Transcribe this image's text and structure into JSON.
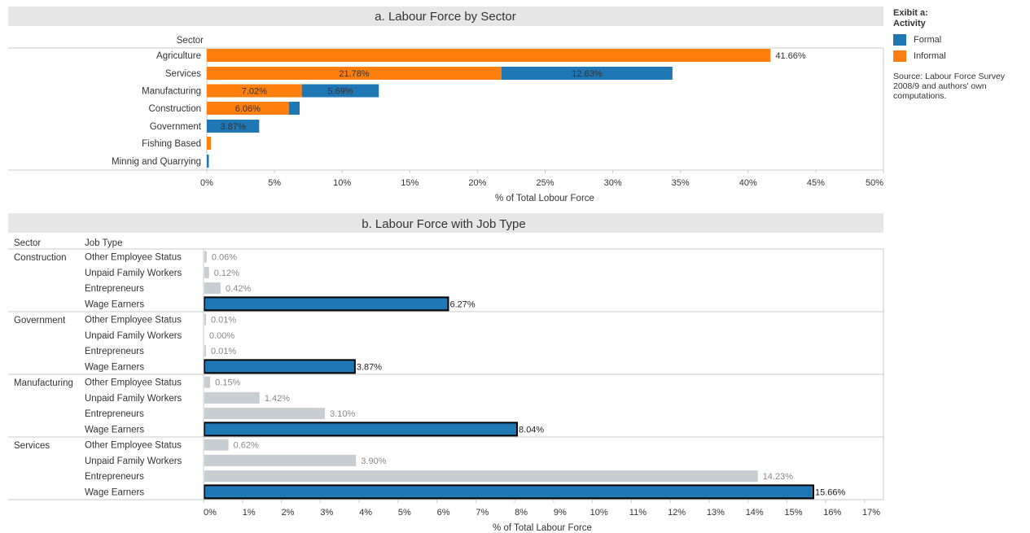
{
  "legend": {
    "title_line1": "Exibit a:",
    "title_line2": "Activity",
    "items": [
      {
        "label": "Formal",
        "color": "#1f77b4"
      },
      {
        "label": "Informal",
        "color": "#ff7f0e"
      }
    ],
    "source": "Source: Labour Force Survey 2008/9 and authors' own computations."
  },
  "chart_data": [
    {
      "type": "bar",
      "orientation": "horizontal",
      "stacked": true,
      "title": "a. Labour Force by Sector",
      "row_header": "Sector",
      "xlabel": "% of Total Lobour Force",
      "xlim": [
        0,
        50
      ],
      "xticks": [
        "0%",
        "5%",
        "10%",
        "15%",
        "20%",
        "25%",
        "30%",
        "35%",
        "40%",
        "45%",
        "50%"
      ],
      "categories": [
        "Agriculture",
        "Services",
        "Manufacturing",
        "Construction",
        "Government",
        "Fishing Based",
        "Minnig and Quarrying"
      ],
      "series": [
        {
          "name": "Informal",
          "color": "#ff7f0e",
          "values": [
            41.66,
            21.78,
            7.02,
            6.06,
            0.0,
            0.3,
            0.0
          ],
          "labels": [
            "41.66%",
            "21.78%",
            "7.02%",
            "6.06%",
            "",
            "",
            ""
          ]
        },
        {
          "name": "Formal",
          "color": "#1f77b4",
          "values": [
            0.0,
            12.63,
            5.69,
            0.8,
            3.87,
            0.0,
            0.15
          ],
          "labels": [
            "",
            "12.63%",
            "5.69%",
            "",
            "3.87%",
            "",
            ""
          ]
        }
      ]
    },
    {
      "type": "bar",
      "orientation": "horizontal",
      "title": "b. Labour Force with Job Type",
      "col_headers": [
        "Sector",
        "Job Type"
      ],
      "xlabel": "% of Total Labour Force",
      "xlim": [
        0,
        17
      ],
      "xticks": [
        "0%",
        "1%",
        "2%",
        "3%",
        "4%",
        "5%",
        "6%",
        "7%",
        "8%",
        "9%",
        "10%",
        "11%",
        "12%",
        "13%",
        "14%",
        "15%",
        "16%",
        "17%"
      ],
      "groups": [
        {
          "sector": "Construction",
          "rows": [
            {
              "job": "Other Employee Status",
              "value": 0.06,
              "label": "0.06%"
            },
            {
              "job": "Unpaid Family Workers",
              "value": 0.12,
              "label": "0.12%"
            },
            {
              "job": "Entrepreneurs",
              "value": 0.42,
              "label": "0.42%"
            },
            {
              "job": "Wage Earners",
              "value": 6.27,
              "label": "6.27%",
              "highlight": true
            }
          ]
        },
        {
          "sector": "Government",
          "rows": [
            {
              "job": "Other Employee Status",
              "value": 0.01,
              "label": "0.01%"
            },
            {
              "job": "Unpaid Family Workers",
              "value": 0.0,
              "label": "0.00%"
            },
            {
              "job": "Entrepreneurs",
              "value": 0.01,
              "label": "0.01%"
            },
            {
              "job": "Wage Earners",
              "value": 3.87,
              "label": "3.87%",
              "highlight": true
            }
          ]
        },
        {
          "sector": "Manufacturing",
          "rows": [
            {
              "job": "Other Employee Status",
              "value": 0.15,
              "label": "0.15%"
            },
            {
              "job": "Unpaid Family Workers",
              "value": 1.42,
              "label": "1.42%"
            },
            {
              "job": "Entrepreneurs",
              "value": 3.1,
              "label": "3.10%"
            },
            {
              "job": "Wage Earners",
              "value": 8.04,
              "label": "8.04%",
              "highlight": true
            }
          ]
        },
        {
          "sector": "Services",
          "rows": [
            {
              "job": "Other Employee Status",
              "value": 0.62,
              "label": "0.62%"
            },
            {
              "job": "Unpaid Family Workers",
              "value": 3.9,
              "label": "3.90%"
            },
            {
              "job": "Entrepreneurs",
              "value": 14.23,
              "label": "14.23%"
            },
            {
              "job": "Wage Earners",
              "value": 15.66,
              "label": "15.66%",
              "highlight": true
            }
          ]
        }
      ],
      "colors": {
        "highlight": "#1f77b4",
        "other": "#c8cdd2",
        "outline": "#000000"
      }
    }
  ]
}
